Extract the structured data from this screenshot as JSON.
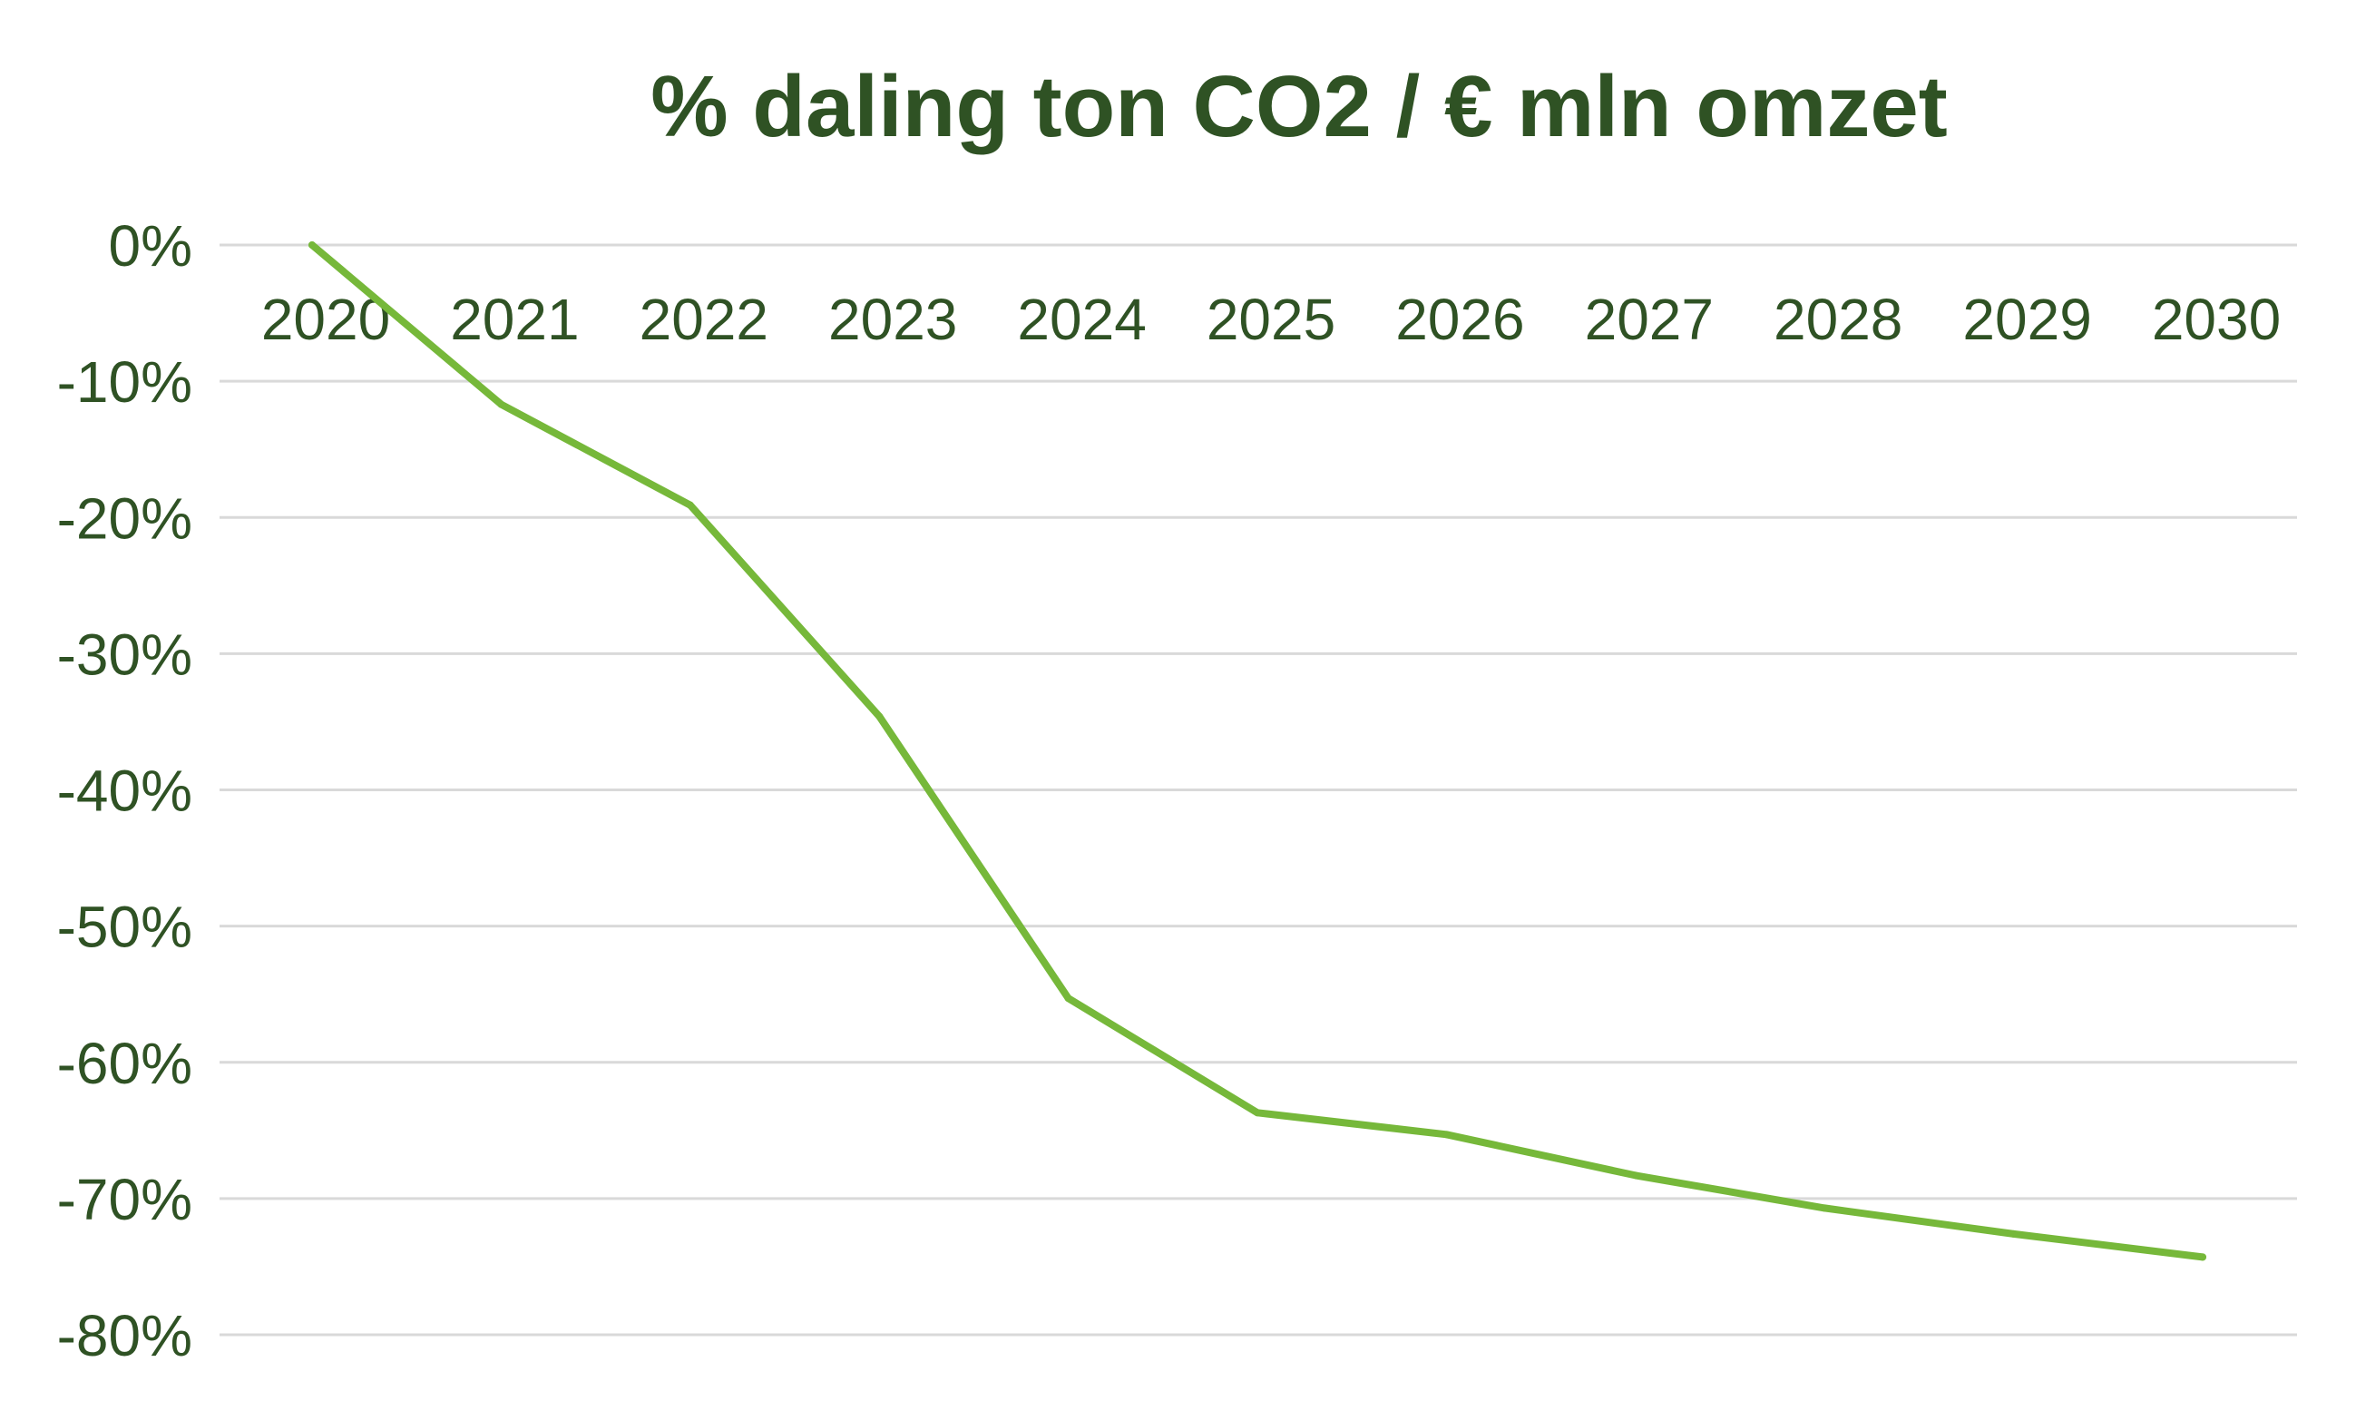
{
  "chart_data": {
    "type": "line",
    "title": "% daling ton CO2 / € mln omzet",
    "xlabel": "",
    "ylabel": "",
    "categories": [
      "2020",
      "2021",
      "2022",
      "2023",
      "2024",
      "2025",
      "2026",
      "2027",
      "2028",
      "2029",
      "2030"
    ],
    "series": [
      {
        "values": [
          0,
          -11.7,
          -19.1,
          -34.6,
          -55.3,
          -63.7,
          -65.3,
          -68.3,
          -70.7,
          -72.6,
          -74.3
        ],
        "color": "#76b83a"
      }
    ],
    "y_ticks": [
      0,
      -10,
      -20,
      -30,
      -40,
      -50,
      -60,
      -70,
      -80
    ],
    "y_tick_labels": [
      "0%",
      "-10%",
      "-20%",
      "-30%",
      "-40%",
      "-50%",
      "-60%",
      "-70%",
      "-80%"
    ],
    "ylim": [
      -80,
      0
    ],
    "grid": true,
    "legend": "none",
    "colors": {
      "text": "#2f5224",
      "grid": "#d9d9d9",
      "line": "#76b83a"
    }
  }
}
